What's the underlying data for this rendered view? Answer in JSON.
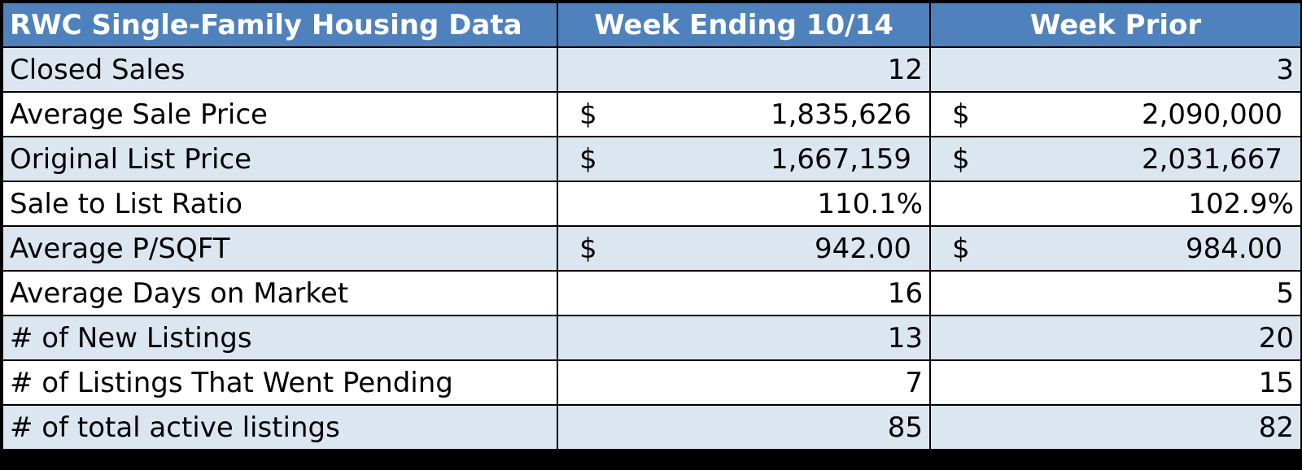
{
  "header": {
    "col1": "RWC Single-Family Housing Data",
    "col2": "Week Ending 10/14",
    "col3": "Week Prior"
  },
  "rows": [
    {
      "label": "Closed Sales",
      "week_ending": "12",
      "week_prior": "3",
      "currency": false
    },
    {
      "label": "Average Sale Price",
      "week_ending": "1,835,626",
      "week_prior": "2,090,000",
      "currency": true
    },
    {
      "label": "Original List Price",
      "week_ending": "1,667,159",
      "week_prior": "2,031,667",
      "currency": true
    },
    {
      "label": "Sale to List Ratio",
      "week_ending": "110.1%",
      "week_prior": "102.9%",
      "currency": false
    },
    {
      "label": "Average P/SQFT",
      "week_ending": "942.00",
      "week_prior": "984.00",
      "currency": true
    },
    {
      "label": "Average Days on Market",
      "week_ending": "16",
      "week_prior": "5",
      "currency": false
    },
    {
      "label": "# of New Listings",
      "week_ending": "13",
      "week_prior": "20",
      "currency": false
    },
    {
      "label": "# of Listings That Went Pending",
      "week_ending": "7",
      "week_prior": "15",
      "currency": false
    },
    {
      "label": "# of total active listings",
      "week_ending": "85",
      "week_prior": "82",
      "currency": false
    }
  ],
  "currency_symbol": "$",
  "colors": {
    "header_bg": "#4f81bd",
    "header_text": "#ffffff",
    "band_bg": "#dce6f1",
    "plain_bg": "#ffffff",
    "border": "#000000"
  }
}
